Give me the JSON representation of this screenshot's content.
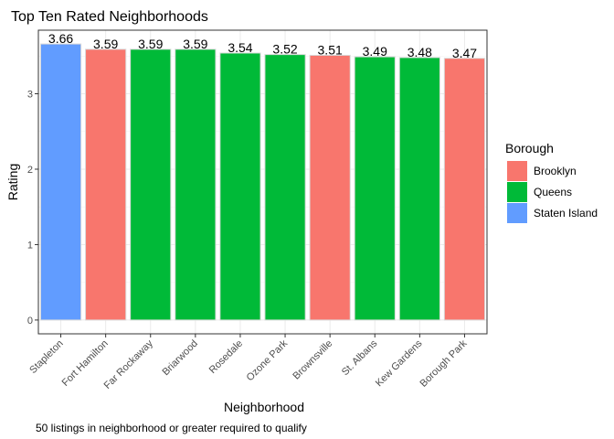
{
  "chart_data": {
    "type": "bar",
    "title": "Top Ten Rated Neighborhoods",
    "xlabel": "Neighborhood",
    "ylabel": "Rating",
    "caption": "50 listings in neighborhood or greater required to qualify",
    "categories": [
      "Stapleton",
      "Fort Hamilton",
      "Far Rockaway",
      "Briarwood",
      "Rosedale",
      "Ozone Park",
      "Brownsville",
      "St. Albans",
      "Kew Gardens",
      "Borough Park"
    ],
    "values": [
      3.66,
      3.59,
      3.59,
      3.59,
      3.54,
      3.52,
      3.51,
      3.49,
      3.48,
      3.47
    ],
    "value_labels": [
      "3.66",
      "3.59",
      "3.59",
      "3.59",
      "3.54",
      "3.52",
      "3.51",
      "3.49",
      "3.48",
      "3.47"
    ],
    "groups": [
      "Staten Island",
      "Brooklyn",
      "Queens",
      "Queens",
      "Queens",
      "Queens",
      "Brooklyn",
      "Queens",
      "Queens",
      "Brooklyn"
    ],
    "yticks": [
      0,
      1,
      2,
      3
    ],
    "ytick_labels": [
      "0",
      "1",
      "2",
      "3"
    ],
    "ylim": [
      -0.183,
      3.843
    ],
    "grid": true,
    "legend": {
      "title": "Borough",
      "placement": "right",
      "entries": [
        {
          "label": "Brooklyn",
          "color": "#F8766D"
        },
        {
          "label": "Queens",
          "color": "#00BA38"
        },
        {
          "label": "Staten Island",
          "color": "#619CFF"
        }
      ]
    },
    "colors": {
      "Brooklyn": "#F8766D",
      "Queens": "#00BA38",
      "Staten Island": "#619CFF"
    }
  }
}
